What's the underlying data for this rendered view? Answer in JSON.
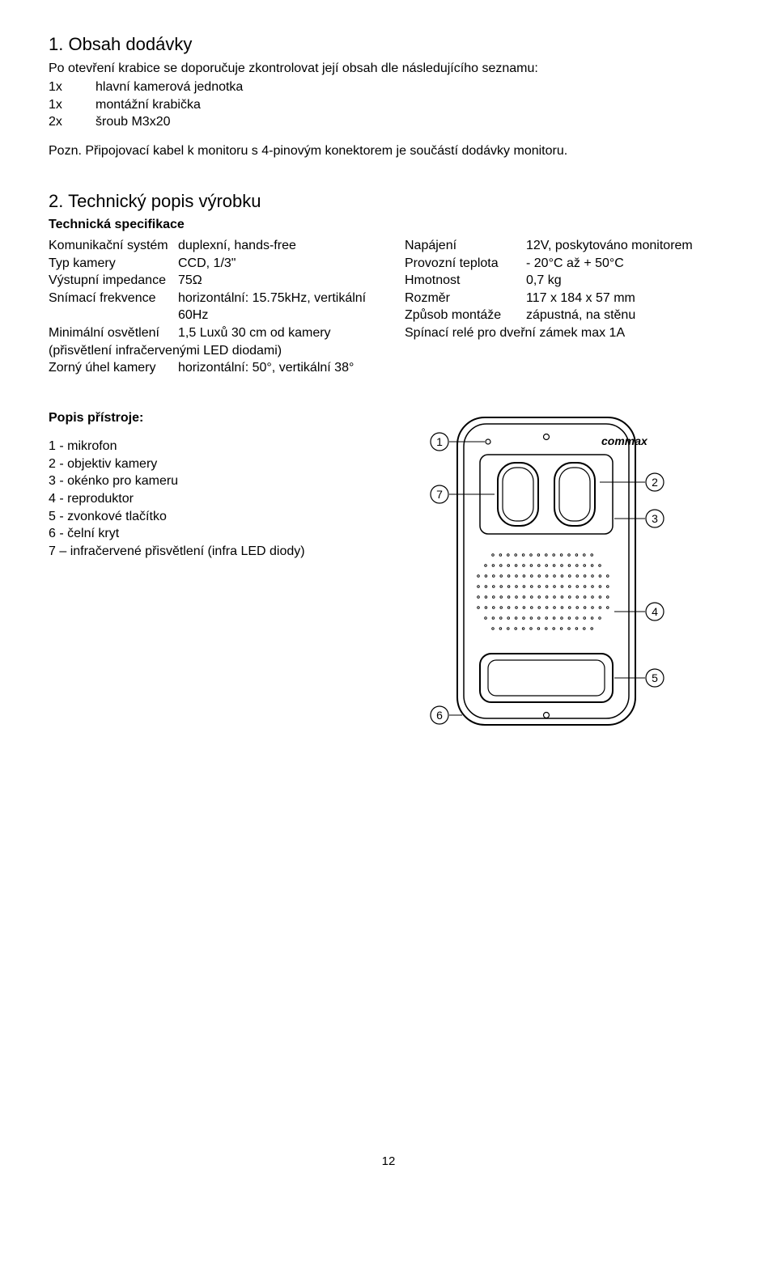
{
  "section1": {
    "title": "1. Obsah dodávky",
    "intro": "Po otevření krabice se doporučuje zkontrolovat její obsah dle následujícího seznamu:",
    "items": [
      {
        "qty": "1x",
        "name": "hlavní kamerová jednotka"
      },
      {
        "qty": "1x",
        "name": "montážní krabička"
      },
      {
        "qty": "2x",
        "name": "šroub M3x20"
      }
    ],
    "note": "Pozn. Připojovací kabel k monitoru s 4-pinovým konektorem je součástí dodávky monitoru."
  },
  "section2": {
    "title": "2. Technický popis výrobku",
    "subhead": "Technická specifikace",
    "left_specs": [
      {
        "label": "Komunikační systém",
        "value": "duplexní, hands-free"
      },
      {
        "label": "Typ kamery",
        "value": "CCD, 1/3\""
      },
      {
        "label": "Výstupní impedance",
        "value": "75Ω"
      },
      {
        "label": "Snímací frekvence",
        "value": "horizontální: 15.75kHz, vertikální 60Hz"
      },
      {
        "label": "Minimální osvětlení",
        "value": "1,5 Luxů 30 cm od kamery"
      }
    ],
    "left_note": "(přisvětlení infračervenými LED diodami)",
    "left_last": {
      "label": "Zorný úhel kamery",
      "value": "horizontální: 50°, vertikální 38°"
    },
    "right_specs": [
      {
        "label": "Napájení",
        "value": "12V, poskytováno monitorem"
      },
      {
        "label": "Provozní teplota",
        "value": "- 20°C  až + 50°C"
      },
      {
        "label": "Hmotnost",
        "value": "0,7 kg"
      },
      {
        "label": "Rozměr",
        "value": "117 x 184 x 57 mm"
      },
      {
        "label": "Způsob montáže",
        "value": "zápustná, na stěnu"
      }
    ],
    "right_note": "Spínací relé pro dveřní zámek max 1A"
  },
  "device": {
    "title": "Popis přístroje:",
    "items": [
      "1 - mikrofon",
      "2 - objektiv kamery",
      "3 - okénko pro kameru",
      "4 - reproduktor",
      "5 - zvonkové tlačítko",
      "6 - čelní kryt",
      "7 – infračervené přisvětlení (infra LED diody)"
    ]
  },
  "diagram": {
    "brand": "commax",
    "callouts_left": [
      "1",
      "7",
      "6"
    ],
    "callouts_right": [
      "2",
      "3",
      "4",
      "5"
    ],
    "stroke": "#000000",
    "fill": "#ffffff",
    "dot_radius": 1.3
  },
  "page_number": "12"
}
